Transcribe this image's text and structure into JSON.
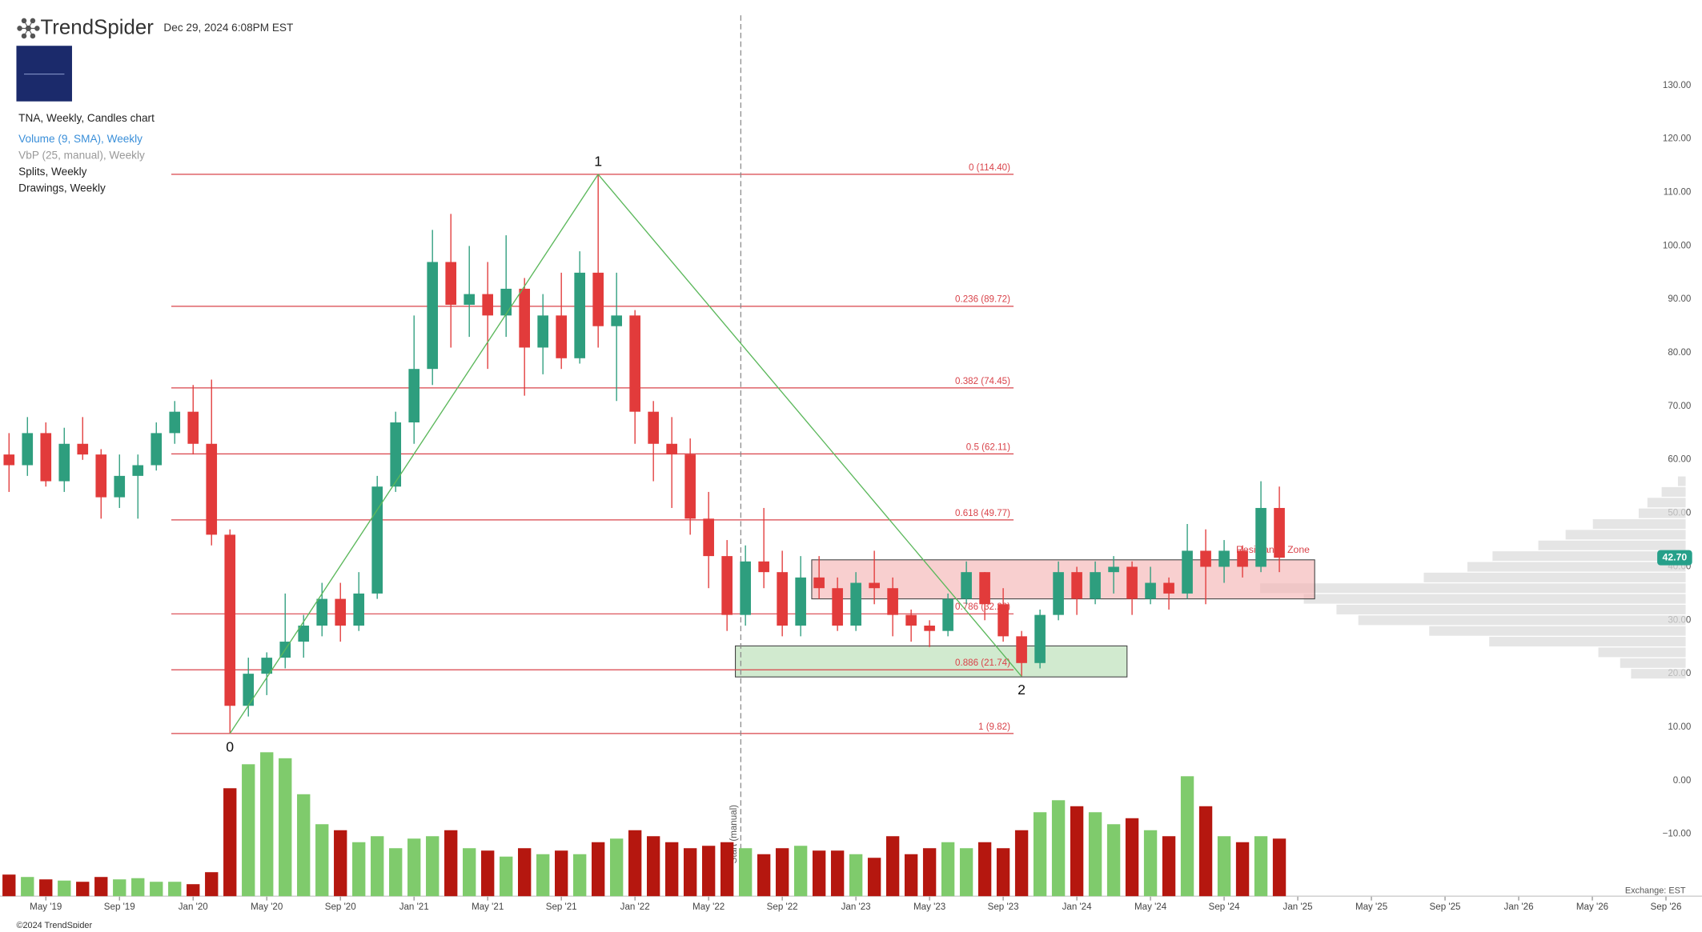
{
  "header": {
    "brand": "TrendSpider",
    "timestamp": "Dec 29, 2024 6:08PM EST",
    "legend": [
      "TNA, Weekly, Candles chart",
      "Volume (9, SMA), Weekly",
      "VbP (25, manual), Weekly",
      "Splits, Weekly",
      "Drawings, Weekly"
    ]
  },
  "footer": {
    "copyright": "©2024 TrendSpider",
    "exchange": "Exchange: EST"
  },
  "chart_data": {
    "type": "candlestick",
    "categories": [
      null,
      null,
      "May '19",
      null,
      null,
      null,
      "Sep '19",
      null,
      null,
      null,
      "Jan '20",
      null,
      null,
      null,
      "May '20",
      null,
      null,
      null,
      "Sep '20",
      null,
      null,
      null,
      "Jan '21",
      null,
      null,
      null,
      "May '21",
      null,
      null,
      null,
      "Sep '21",
      null,
      null,
      null,
      "Jan '22",
      null,
      null,
      null,
      "May '22",
      null,
      null,
      null,
      "Sep '22",
      null,
      null,
      null,
      "Jan '23",
      null,
      null,
      null,
      "May '23",
      null,
      null,
      null,
      "Sep '23",
      null,
      null,
      null,
      "Jan '24",
      null,
      null,
      null,
      "May '24",
      null,
      null,
      null,
      "Sep '24",
      null,
      null,
      null,
      "Jan '25",
      null,
      null,
      null,
      "May '25",
      null,
      null,
      null,
      "Sep '25",
      null,
      null,
      null,
      "Jan '26",
      null,
      null,
      null,
      "May '26",
      null,
      null,
      null,
      "Sep '26",
      null
    ],
    "open": [
      62,
      60,
      66,
      57,
      64,
      62,
      54,
      58,
      60,
      66,
      70,
      64,
      47,
      15,
      21,
      24,
      27,
      30,
      35,
      30,
      36,
      56,
      68,
      78,
      98,
      90,
      92,
      88,
      93,
      82,
      88,
      80,
      96,
      86,
      88,
      70,
      64,
      62,
      50,
      43,
      32,
      42,
      40,
      30,
      39,
      37,
      30,
      38,
      37,
      32,
      30,
      29,
      35,
      40,
      34,
      28,
      23,
      32,
      40,
      35,
      40,
      41,
      35,
      38,
      36,
      44,
      41,
      44,
      41,
      52,
      null,
      null,
      null,
      null,
      null,
      null,
      null,
      null,
      null,
      null,
      null,
      null,
      null,
      null,
      null,
      null,
      null,
      null,
      null,
      null,
      null,
      null
    ],
    "high": [
      66,
      69,
      68,
      67,
      69,
      63,
      62,
      62,
      68,
      72,
      75,
      76,
      48,
      24,
      25,
      36,
      32,
      38,
      38,
      40,
      58,
      70,
      88,
      104,
      107,
      101,
      98,
      103,
      95,
      92,
      96,
      100,
      114.4,
      96,
      89,
      72,
      69,
      65,
      55,
      46,
      45,
      52,
      44,
      43,
      43,
      39,
      40,
      44,
      39,
      33,
      31,
      36,
      42,
      40,
      37,
      29,
      33,
      42,
      41,
      42,
      43,
      42,
      41,
      39,
      49,
      48,
      46,
      45,
      57,
      56,
      null,
      null,
      null,
      null,
      null,
      null,
      null,
      null,
      null,
      null,
      null,
      null,
      null,
      null,
      null,
      null,
      null,
      null,
      null,
      null,
      null,
      null
    ],
    "low": [
      55,
      58,
      56,
      55,
      61,
      50,
      52,
      50,
      59,
      64,
      62,
      45,
      9.82,
      13,
      17,
      22,
      24,
      28,
      27,
      29,
      35,
      55,
      64,
      75,
      82,
      84,
      78,
      84,
      73,
      77,
      78,
      79,
      82,
      72,
      64,
      57,
      52,
      47,
      37,
      29,
      30,
      37,
      28,
      28,
      35,
      29,
      29,
      34,
      28,
      27,
      26,
      28,
      34,
      31,
      27,
      20.5,
      22,
      31,
      32,
      34,
      36,
      32,
      34,
      33,
      35,
      34,
      38,
      39,
      40,
      40,
      null,
      null,
      null,
      null,
      null,
      null,
      null,
      null,
      null,
      null,
      null,
      null,
      null,
      null,
      null,
      null,
      null,
      null,
      null,
      null,
      null,
      null
    ],
    "close": [
      60,
      66,
      57,
      64,
      62,
      54,
      58,
      60,
      66,
      70,
      64,
      47,
      15,
      21,
      24,
      27,
      30,
      35,
      30,
      36,
      56,
      68,
      78,
      98,
      90,
      92,
      88,
      93,
      82,
      88,
      80,
      96,
      86,
      88,
      70,
      64,
      62,
      50,
      43,
      32,
      42,
      40,
      30,
      39,
      37,
      30,
      38,
      37,
      32,
      30,
      29,
      35,
      40,
      34,
      28,
      23,
      32,
      40,
      35,
      40,
      41,
      35,
      38,
      36,
      44,
      41,
      44,
      41,
      52,
      42.7,
      null,
      null,
      null,
      null,
      null,
      null,
      null,
      null,
      null,
      null,
      null,
      null,
      null,
      null,
      null,
      null,
      null,
      null,
      null,
      null,
      null,
      null
    ],
    "volume": [
      18,
      16,
      14,
      13,
      12,
      16,
      14,
      15,
      12,
      12,
      10,
      20,
      90,
      110,
      120,
      115,
      85,
      60,
      55,
      45,
      50,
      40,
      48,
      50,
      55,
      40,
      38,
      33,
      40,
      35,
      38,
      35,
      45,
      48,
      55,
      50,
      45,
      40,
      42,
      45,
      40,
      35,
      40,
      42,
      38,
      38,
      35,
      32,
      50,
      35,
      40,
      45,
      40,
      45,
      40,
      55,
      70,
      80,
      75,
      70,
      60,
      65,
      55,
      50,
      100,
      75,
      50,
      45,
      50,
      48,
      null,
      null,
      null,
      null,
      null,
      null,
      null,
      null,
      null,
      null,
      null,
      null,
      null,
      null,
      null,
      null,
      null,
      null,
      null,
      null,
      null,
      null
    ],
    "ylim": [
      -20.6,
      147
    ],
    "yticks": [
      {
        "value": 130,
        "label": "130.00"
      },
      {
        "value": 120,
        "label": "120.00"
      },
      {
        "value": 110,
        "label": "110.00"
      },
      {
        "value": 100,
        "label": "100.00"
      },
      {
        "value": 90,
        "label": "90.00"
      },
      {
        "value": 80,
        "label": "80.00"
      },
      {
        "value": 70,
        "label": "70.00"
      },
      {
        "value": 60,
        "label": "60.00"
      },
      {
        "value": 50,
        "label": "50.00"
      },
      {
        "value": 40,
        "label": "40.00"
      },
      {
        "value": 30,
        "label": "30.00"
      },
      {
        "value": 20,
        "label": "20.00"
      },
      {
        "value": 10,
        "label": "10.00"
      },
      {
        "value": 0,
        "label": "0.00"
      },
      {
        "value": -10,
        "label": "−10.00"
      }
    ],
    "fib_levels": [
      {
        "value": 114.4,
        "label": "0 (114.40)"
      },
      {
        "value": 89.72,
        "label": "0.236 (89.72)"
      },
      {
        "value": 74.45,
        "label": "0.382 (74.45)"
      },
      {
        "value": 62.11,
        "label": "0.5 (62.11)"
      },
      {
        "value": 49.77,
        "label": "0.618 (49.77)"
      },
      {
        "value": 32.2,
        "label": "0.786 (32.20)"
      },
      {
        "value": 21.74,
        "label": "0.886 (21.74)"
      },
      {
        "value": 9.82,
        "label": "1 (9.82)"
      }
    ],
    "waves": [
      {
        "label": "0",
        "value": 9.82
      },
      {
        "label": "1",
        "value": 114.4
      },
      {
        "label": "2",
        "value": 20.5
      }
    ],
    "zones": [
      {
        "low": 20.4,
        "high": 26.2,
        "color": "#b9dfb5"
      },
      {
        "low": 35.0,
        "high": 42.3,
        "color": "#f4b6b6",
        "label": "Resistance Zone"
      }
    ],
    "vbp": {
      "label": "Start (manual)",
      "bins": [
        20,
        22,
        24,
        26,
        28,
        30,
        32,
        34,
        36,
        38,
        40,
        42,
        44,
        46,
        48,
        50,
        52,
        54,
        56,
        58
      ],
      "counts": [
        50,
        60,
        80,
        180,
        235,
        300,
        320,
        350,
        390,
        240,
        200,
        177,
        135,
        110,
        85,
        43,
        35,
        22,
        7
      ]
    },
    "price_tag": {
      "value": 42.7,
      "label": "42.70"
    },
    "colors": {
      "up": "#2e9e7e",
      "down": "#e23b3b",
      "vol_up": "#7fcb6c",
      "vol_down": "#b5170f",
      "fib": "#d9434a",
      "wave": "#5cb85c",
      "vbp": "#dcdcdc",
      "tag": "#26a08a"
    }
  }
}
